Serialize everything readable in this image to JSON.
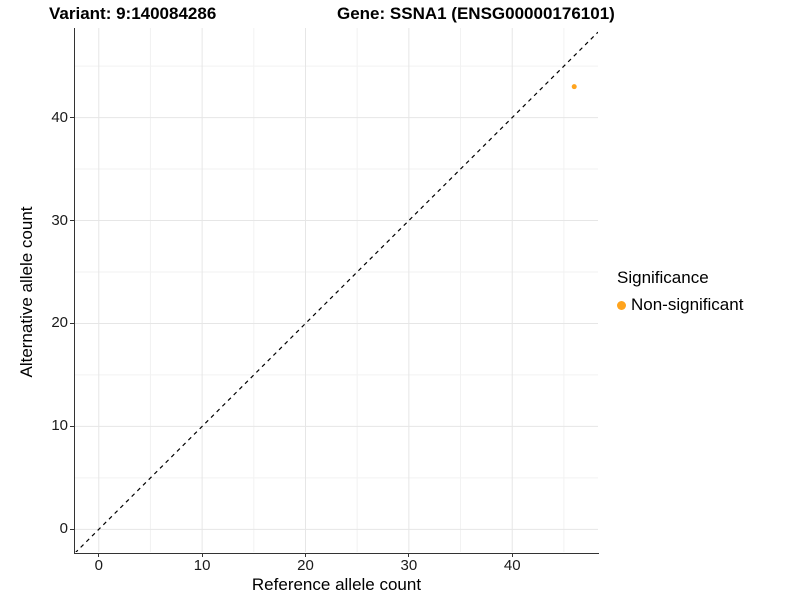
{
  "titles": {
    "variant": "Variant: 9:140084286",
    "gene": "Gene: SSNA1 (ENSG00000176101)"
  },
  "chart_data": {
    "type": "scatter",
    "title_left": "Variant: 9:140084286",
    "title_right": "Gene: SSNA1 (ENSG00000176101)",
    "xlabel": "Reference allele count",
    "ylabel": "Alternative allele count",
    "xlim": [
      -2.3,
      48.3
    ],
    "ylim": [
      -2.2,
      48.7
    ],
    "x_major_ticks": [
      0,
      10,
      20,
      30,
      40
    ],
    "y_major_ticks": [
      0,
      10,
      20,
      30,
      40
    ],
    "x_minor_ticks": [
      5,
      15,
      25,
      35,
      45
    ],
    "y_minor_ticks": [
      5,
      15,
      25,
      35,
      45
    ],
    "grid": "major+minor, light gray on white",
    "abline": {
      "slope": 1,
      "intercept": 0,
      "style": "dashed",
      "color": "#000000",
      "meaning": "identity line y = x"
    },
    "series": [
      {
        "name": "Non-significant",
        "color": "#FFA41E",
        "points": [
          {
            "x": 46,
            "y": 43
          }
        ]
      }
    ],
    "legend": {
      "title": "Significance",
      "position": "right",
      "items": [
        {
          "label": "Non-significant",
          "color": "#FFA41E"
        }
      ]
    }
  },
  "colors": {
    "background": "#ffffff",
    "axis_line": "#333333",
    "grid_major": "#e6e6e6",
    "grid_minor": "#f2f2f2",
    "point": "#FFA41E",
    "abline": "#000000",
    "text": "#000000"
  }
}
